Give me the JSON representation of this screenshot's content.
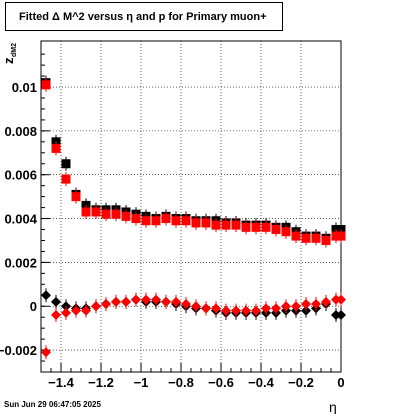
{
  "title": "Fitted Δ M^2 versus η and p for Primary muon+",
  "timestamp": "Sun Jun 29 06:47:05 2025",
  "colors": {
    "series_a": "#000000",
    "series_b": "#ff0000"
  },
  "chart_data": {
    "type": "scatter",
    "title": "Fitted Δ M^2 versus η and p for Primary muon+",
    "xlabel": "η",
    "ylabel": "z",
    "ylabel_sub": "dM2",
    "xlim": [
      -1.5,
      0
    ],
    "ylim": [
      -0.003,
      0.0121
    ],
    "grid": true,
    "x_ticks": [
      -1.4,
      -1.2,
      -1,
      -0.8,
      -0.6,
      -0.4,
      -0.2,
      0
    ],
    "x_tick_labels": [
      "−1.4",
      "−1.2",
      "−1",
      "−0.8",
      "−0.6",
      "−0.4",
      "−0.2",
      "0"
    ],
    "y_ticks": [
      -0.002,
      0,
      0.002,
      0.004,
      0.006,
      0.008,
      0.01
    ],
    "y_tick_labels": [
      "−0.002",
      "0",
      "0.002",
      "0.004",
      "0.006",
      "0.008",
      "0.01"
    ],
    "x": [
      -1.475,
      -1.425,
      -1.375,
      -1.325,
      -1.275,
      -1.225,
      -1.175,
      -1.125,
      -1.075,
      -1.025,
      -0.975,
      -0.925,
      -0.875,
      -0.825,
      -0.775,
      -0.725,
      -0.675,
      -0.625,
      -0.575,
      -0.525,
      -0.475,
      -0.425,
      -0.375,
      -0.325,
      -0.275,
      -0.225,
      -0.175,
      -0.125,
      -0.075,
      -0.025,
      0.0
    ],
    "series": [
      {
        "marker": "square",
        "color": "#000000",
        "values": [
          0.0102,
          0.0075,
          0.0065,
          0.0051,
          0.0046,
          0.0044,
          0.0044,
          0.0044,
          0.0043,
          0.0042,
          0.0041,
          0.004,
          0.0041,
          0.004,
          0.004,
          0.0039,
          0.0039,
          0.0039,
          0.0038,
          0.0038,
          0.0037,
          0.0037,
          0.0037,
          0.0036,
          0.0036,
          0.0034,
          0.0032,
          0.0032,
          0.0031,
          0.0035,
          0.0035
        ]
      },
      {
        "marker": "square",
        "color": "#ff0000",
        "values": [
          0.0101,
          0.0072,
          0.0058,
          0.005,
          0.0043,
          0.0043,
          0.0042,
          0.0042,
          0.0041,
          0.004,
          0.0039,
          0.0039,
          0.004,
          0.0039,
          0.0039,
          0.0038,
          0.0038,
          0.0037,
          0.0037,
          0.0037,
          0.0036,
          0.0036,
          0.0036,
          0.0035,
          0.0034,
          0.0032,
          0.0031,
          0.0031,
          0.003,
          0.0032,
          0.0032
        ]
      },
      {
        "marker": "diamond",
        "color": "#000000",
        "values": [
          0.0005,
          0.0002,
          0.0,
          -0.0001,
          -0.0001,
          0.0,
          0.0001,
          0.0002,
          0.0002,
          0.0003,
          0.0002,
          0.0002,
          0.0002,
          0.0001,
          0.0,
          -0.0001,
          -0.0001,
          -0.0002,
          -0.0003,
          -0.0003,
          -0.0003,
          -0.0003,
          -0.0003,
          -0.0003,
          -0.0002,
          -0.0002,
          -0.0002,
          -0.0001,
          0.0001,
          -0.0004,
          -0.0004
        ]
      },
      {
        "marker": "diamond",
        "color": "#ff0000",
        "values": [
          -0.0021,
          -0.0004,
          -0.0003,
          -0.0002,
          -0.0002,
          0.0,
          0.0001,
          0.0002,
          0.0002,
          0.0003,
          0.0003,
          0.0003,
          0.0002,
          0.0002,
          0.0001,
          0.0,
          -0.0001,
          -0.0001,
          -0.0002,
          -0.0002,
          -0.0002,
          -0.0002,
          -0.0001,
          -0.0001,
          0.0,
          0.0,
          0.0001,
          0.0001,
          0.0002,
          0.0003,
          0.0003
        ]
      }
    ]
  }
}
